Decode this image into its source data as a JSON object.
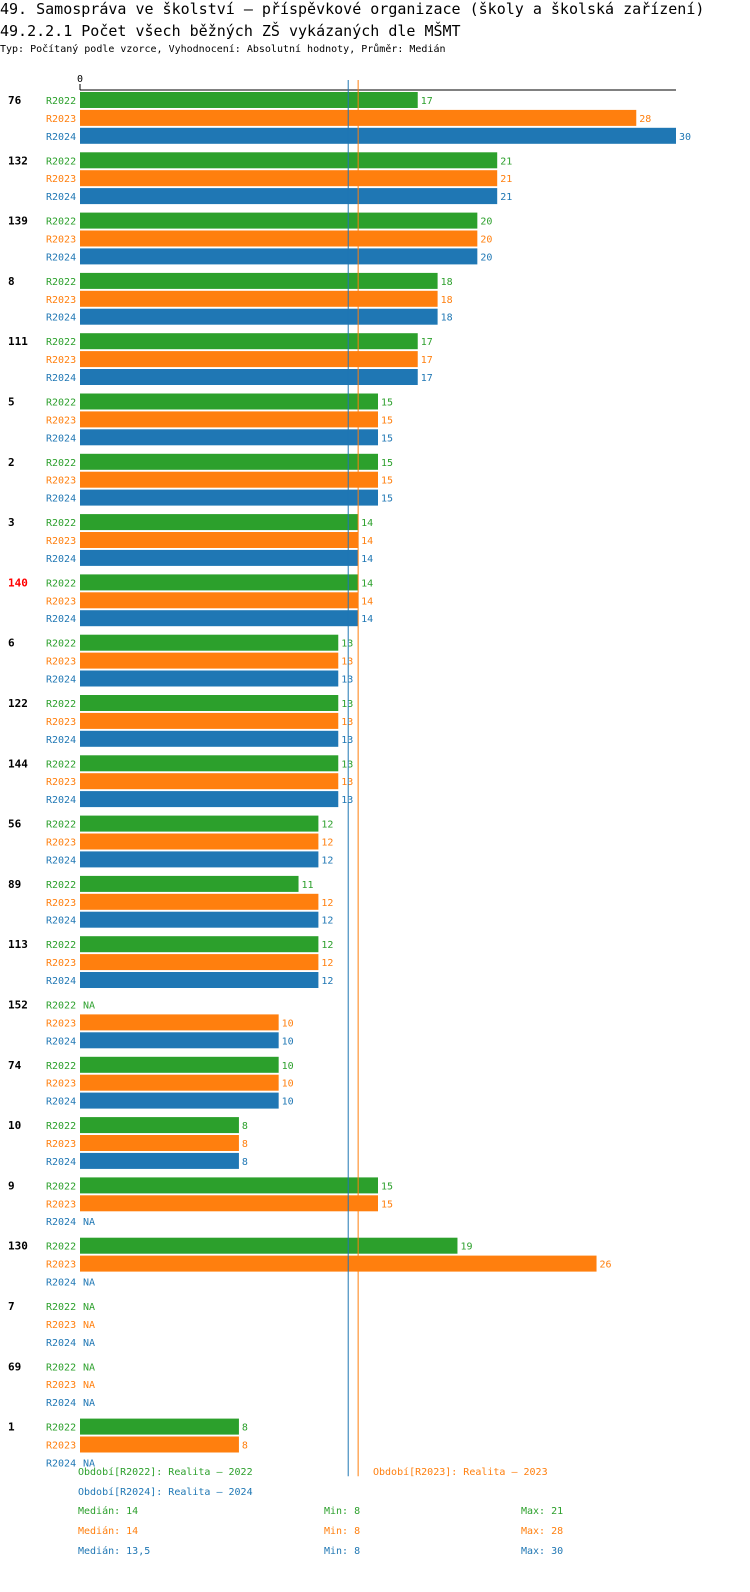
{
  "header": {
    "title": "49. Samospráva ve školství – příspěvkové organizace (školy a školská zařízení)",
    "subtitle": "49.2.2.1 Počet všech běžných ZŠ vykázaných dle MŠMT",
    "meta": "Typ: Počítaný podle vzorce, Vyhodnocení: Absolutní hodnoty, Průměr: Medián"
  },
  "chart_data": {
    "type": "bar",
    "orientation": "horizontal",
    "title": "49.2.2.1 Počet všech běžných ZŠ vykázaných dle MŠMT",
    "xlim": [
      0,
      30
    ],
    "x_tick_labels": [
      "0"
    ],
    "na_label": "NA",
    "highlight_group": "140",
    "series": [
      {
        "name": "R2022",
        "color": "#2ca02c"
      },
      {
        "name": "R2023",
        "color": "#ff7f0e"
      },
      {
        "name": "R2024",
        "color": "#1f77b4"
      }
    ],
    "groups": [
      {
        "label": "76",
        "values": [
          17,
          28,
          30
        ]
      },
      {
        "label": "132",
        "values": [
          21,
          21,
          21
        ]
      },
      {
        "label": "139",
        "values": [
          20,
          20,
          20
        ]
      },
      {
        "label": "8",
        "values": [
          18,
          18,
          18
        ]
      },
      {
        "label": "111",
        "values": [
          17,
          17,
          17
        ]
      },
      {
        "label": "5",
        "values": [
          15,
          15,
          15
        ]
      },
      {
        "label": "2",
        "values": [
          15,
          15,
          15
        ]
      },
      {
        "label": "3",
        "values": [
          14,
          14,
          14
        ]
      },
      {
        "label": "140",
        "values": [
          14,
          14,
          14
        ]
      },
      {
        "label": "6",
        "values": [
          13,
          13,
          13
        ]
      },
      {
        "label": "122",
        "values": [
          13,
          13,
          13
        ]
      },
      {
        "label": "144",
        "values": [
          13,
          13,
          13
        ]
      },
      {
        "label": "56",
        "values": [
          12,
          12,
          12
        ]
      },
      {
        "label": "89",
        "values": [
          11,
          12,
          12
        ]
      },
      {
        "label": "113",
        "values": [
          12,
          12,
          12
        ]
      },
      {
        "label": "152",
        "values": [
          null,
          10,
          10
        ]
      },
      {
        "label": "74",
        "values": [
          10,
          10,
          10
        ]
      },
      {
        "label": "10",
        "values": [
          8,
          8,
          8
        ]
      },
      {
        "label": "9",
        "values": [
          15,
          15,
          null
        ]
      },
      {
        "label": "130",
        "values": [
          19,
          26,
          null
        ]
      },
      {
        "label": "7",
        "values": [
          null,
          null,
          null
        ]
      },
      {
        "label": "69",
        "values": [
          null,
          null,
          null
        ]
      },
      {
        "label": "1",
        "values": [
          8,
          8,
          null
        ]
      }
    ],
    "reference_lines": [
      {
        "series": "R2023",
        "value": 14
      },
      {
        "series": "R2024",
        "value": 13.5
      }
    ]
  },
  "legend": {
    "period_labels": [
      "Období[R2022]: Realita – 2022",
      "Období[R2023]: Realita – 2023",
      "Období[R2024]: Realita – 2024"
    ],
    "stats": [
      {
        "median": "Medián: 14",
        "min": "Min: 8",
        "max": "Max: 21"
      },
      {
        "median": "Medián: 14",
        "min": "Min: 8",
        "max": "Max: 28"
      },
      {
        "median": "Medián: 13,5",
        "min": "Min: 8",
        "max": "Max: 30"
      }
    ]
  }
}
